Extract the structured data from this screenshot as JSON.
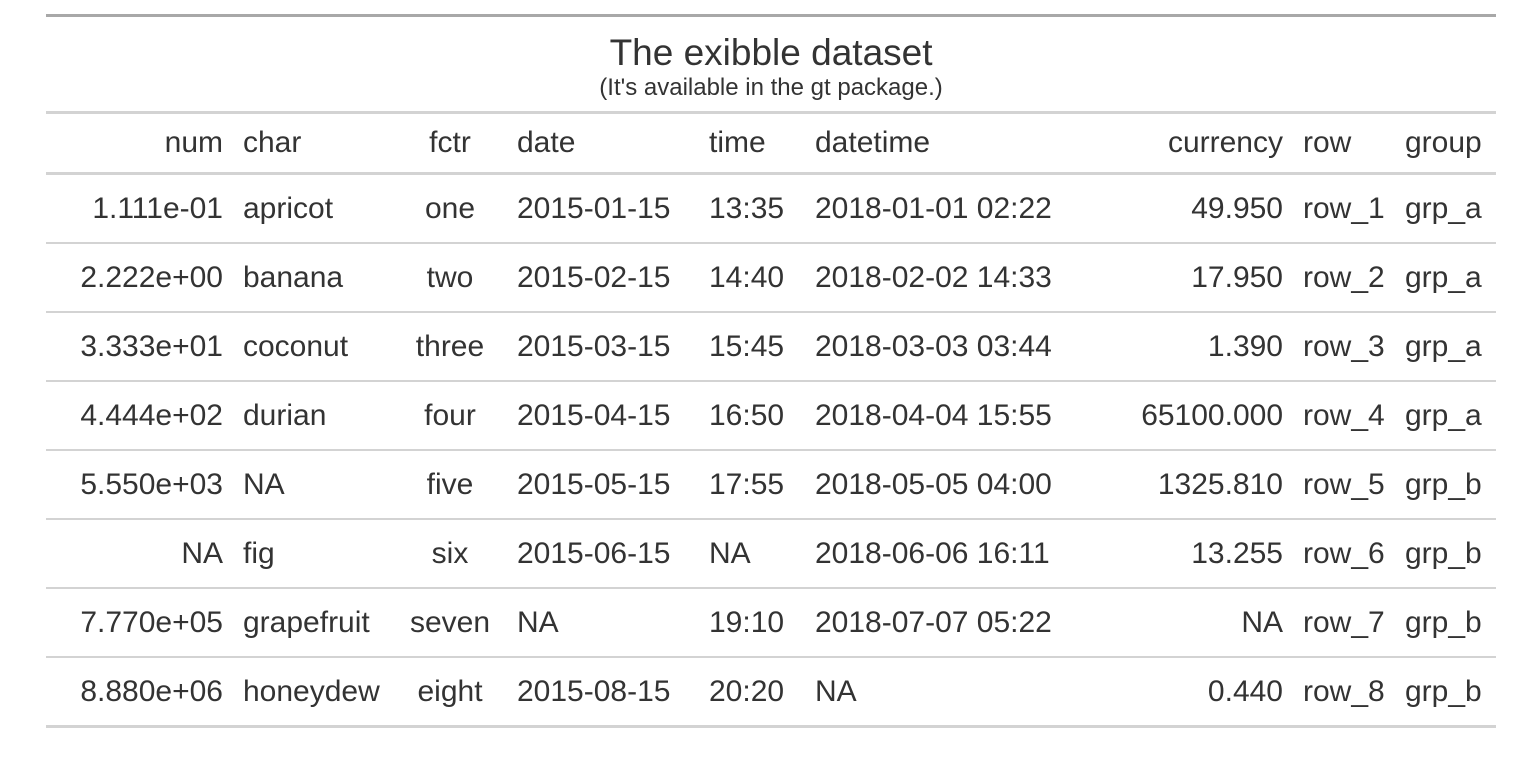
{
  "title": "The exibble dataset",
  "subtitle": "(It's available in the gt package.)",
  "columns": [
    "num",
    "char",
    "fctr",
    "date",
    "time",
    "datetime",
    "currency",
    "row",
    "group"
  ],
  "rows": [
    [
      "1.111e-01",
      "apricot",
      "one",
      "2015-01-15",
      "13:35",
      "2018-01-01 02:22",
      "49.950",
      "row_1",
      "grp_a"
    ],
    [
      "2.222e+00",
      "banana",
      "two",
      "2015-02-15",
      "14:40",
      "2018-02-02 14:33",
      "17.950",
      "row_2",
      "grp_a"
    ],
    [
      "3.333e+01",
      "coconut",
      "three",
      "2015-03-15",
      "15:45",
      "2018-03-03 03:44",
      "1.390",
      "row_3",
      "grp_a"
    ],
    [
      "4.444e+02",
      "durian",
      "four",
      "2015-04-15",
      "16:50",
      "2018-04-04 15:55",
      "65100.000",
      "row_4",
      "grp_a"
    ],
    [
      "5.550e+03",
      "NA",
      "five",
      "2015-05-15",
      "17:55",
      "2018-05-05 04:00",
      "1325.810",
      "row_5",
      "grp_b"
    ],
    [
      "NA",
      "fig",
      "six",
      "2015-06-15",
      "NA",
      "2018-06-06 16:11",
      "13.255",
      "row_6",
      "grp_b"
    ],
    [
      "7.770e+05",
      "grapefruit",
      "seven",
      "NA",
      "19:10",
      "2018-07-07 05:22",
      "NA",
      "row_7",
      "grp_b"
    ],
    [
      "8.880e+06",
      "honeydew",
      "eight",
      "2015-08-15",
      "20:20",
      "NA",
      "0.440",
      "row_8",
      "grp_b"
    ]
  ],
  "colors": {
    "text": "#333333",
    "top_border": "#a8a8a8",
    "rule": "#d3d3d3"
  }
}
